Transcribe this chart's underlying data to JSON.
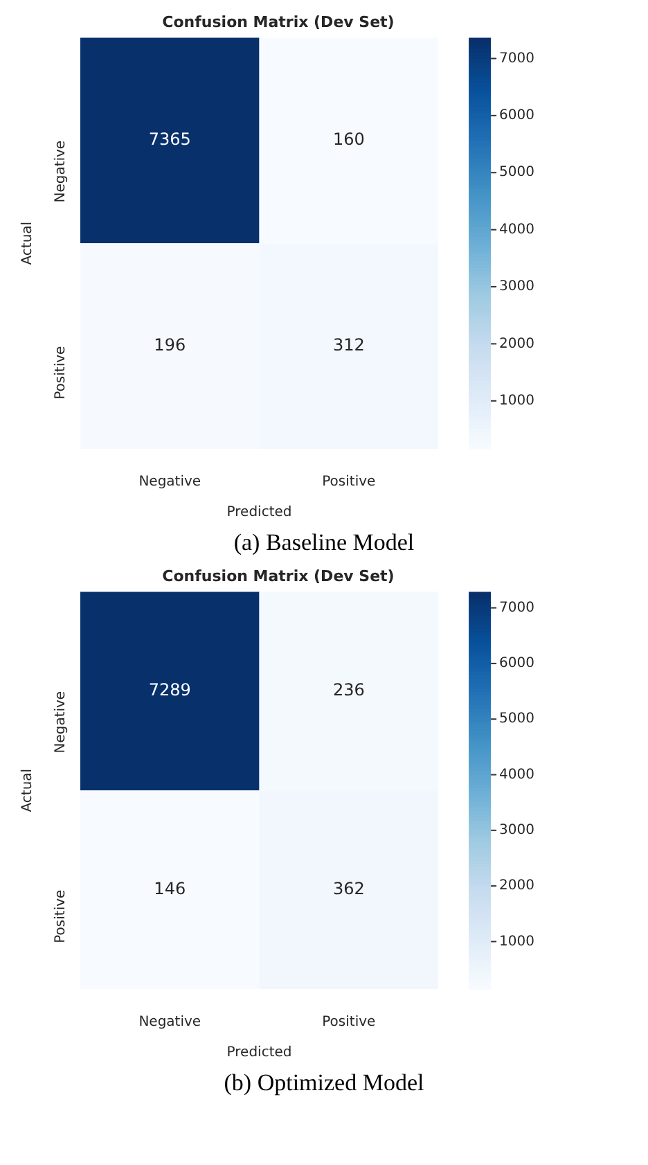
{
  "chart_data": [
    {
      "type": "heatmap",
      "title": "Confusion Matrix (Dev Set)",
      "xlabel": "Predicted",
      "ylabel": "Actual",
      "categories": [
        "Negative",
        "Positive"
      ],
      "y_categories": [
        "Negative",
        "Positive"
      ],
      "cells": [
        [
          7365,
          160
        ],
        [
          196,
          312
        ]
      ],
      "clim": [
        160,
        7365
      ],
      "cticks": [
        1000,
        2000,
        3000,
        4000,
        5000,
        6000,
        7000
      ],
      "data_labels": true,
      "annotations": [
        "(a) Baseline Model"
      ]
    },
    {
      "type": "heatmap",
      "title": "Confusion Matrix (Dev Set)",
      "xlabel": "Predicted",
      "ylabel": "Actual",
      "categories": [
        "Negative",
        "Positive"
      ],
      "y_categories": [
        "Negative",
        "Positive"
      ],
      "cells": [
        [
          7289,
          236
        ],
        [
          146,
          362
        ]
      ],
      "clim": [
        146,
        7289
      ],
      "cticks": [
        1000,
        2000,
        3000,
        4000,
        5000,
        6000,
        7000
      ],
      "data_labels": true,
      "annotations": [
        "(b) Optimized Model"
      ]
    }
  ]
}
